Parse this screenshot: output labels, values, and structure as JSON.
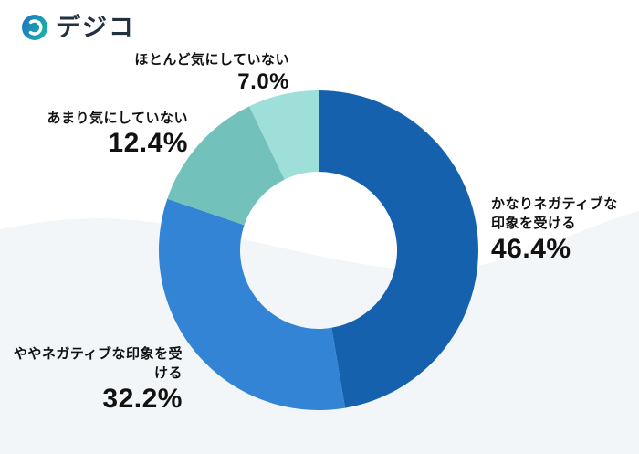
{
  "logo": {
    "text": "デジコ",
    "icon": "digico-logo-icon",
    "icon_gradient": [
      "#1f78c1",
      "#16b3ab"
    ]
  },
  "background": {
    "page_color": "#ffffff",
    "wave_color": "#f2f6f9"
  },
  "chart_data": {
    "type": "pie",
    "subtype": "donut",
    "title": "",
    "labels": [
      "かなりネガティブな印象を受ける",
      "ややネガティブな印象を受ける",
      "あまり気にしていない",
      "ほとんど気にしていない"
    ],
    "values": [
      46.4,
      32.2,
      12.4,
      7.0
    ],
    "data_labels": [
      "46.4%",
      "32.2%",
      "12.4%",
      "7.0%"
    ],
    "unit": "%",
    "colors": [
      "#1561ad",
      "#3384d4",
      "#72c1bb",
      "#9fdfd9"
    ],
    "start_angle_deg": 0,
    "direction": "clockwise",
    "inner_radius_ratio": 0.49,
    "legend_position": "outside-callouts",
    "grid": false
  },
  "callouts": {
    "kanari": {
      "line1": "かなりネガティブな",
      "line2": "印象を受ける",
      "value": "46.4%"
    },
    "yaya": {
      "line1": "ややネガティブな印象を受ける",
      "value": "32.2%"
    },
    "amari": {
      "line1": "あまり気にしていない",
      "value": "12.4%"
    },
    "hotondo": {
      "line1": "ほとんど気にしていない",
      "value": "7.0%"
    }
  }
}
